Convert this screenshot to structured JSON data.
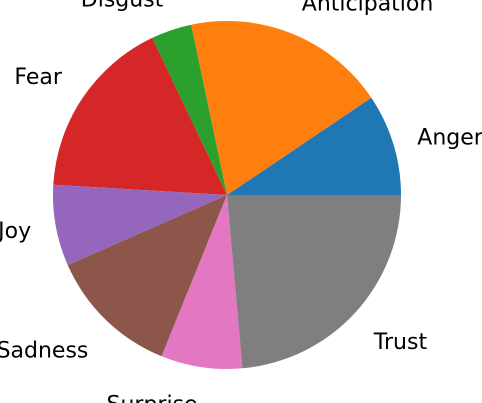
{
  "chart_data": {
    "type": "pie",
    "title": "",
    "start_angle_deg": 0,
    "direction": "counterclockwise",
    "slices": [
      {
        "label": "Anger",
        "value": 10,
        "color": "#1f77b4"
      },
      {
        "label": "Anticipation",
        "value": 20,
        "color": "#ff7f0e"
      },
      {
        "label": "Disgust",
        "value": 4,
        "color": "#2ca02c"
      },
      {
        "label": "Fear",
        "value": 18,
        "color": "#d62728"
      },
      {
        "label": "Joy",
        "value": 8,
        "color": "#9467bd"
      },
      {
        "label": "Sadness",
        "value": 13,
        "color": "#8c564b"
      },
      {
        "label": "Surprise",
        "value": 8,
        "color": "#e377c2"
      },
      {
        "label": "Trust",
        "value": 25,
        "color": "#7f7f7f"
      }
    ]
  }
}
